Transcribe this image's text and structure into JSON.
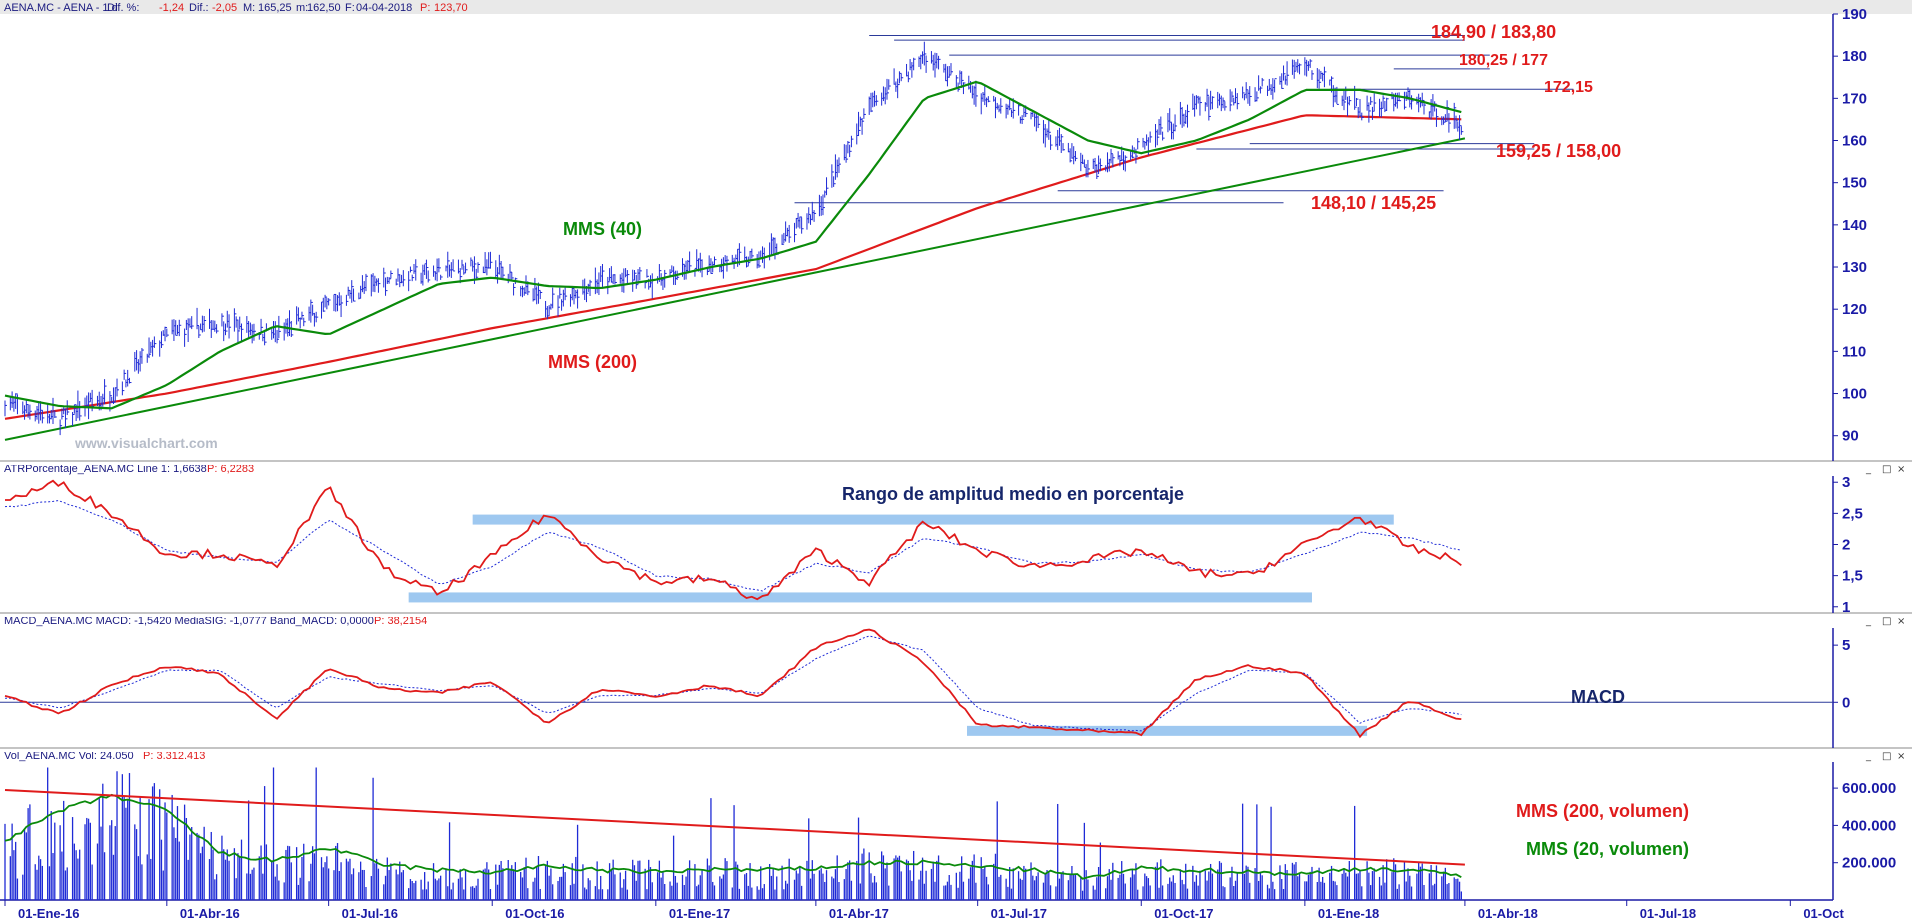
{
  "panels": {
    "price": {
      "header_symbol": "AENA.MC - AENA - 1 d",
      "header_fields": [
        {
          "k": "Dif. %:",
          "v": "-1,24"
        },
        {
          "k": "Dif.:",
          "v": "-2,05"
        },
        {
          "k": "M:",
          "v": "165,25"
        },
        {
          "k": "m:",
          "v": "162,50"
        },
        {
          "k": "F:",
          "v": "04-04-2018"
        },
        {
          "k": "P:",
          "v": "123,70"
        }
      ],
      "watermark": "www.visualchart.com"
    },
    "atr": {
      "header": "ATRPorcentaje_AENA.MC Line 1: 1,6638",
      "header_p": "P: 6,2283"
    },
    "macd": {
      "header": "MACD_AENA.MC MACD: -1,5420 MediaSIG: -1,0777 Band_MACD: 0,0000",
      "header_p": "P: 38,2154"
    },
    "vol": {
      "header": "Vol_AENA.MC Vol: 24.050",
      "header_p": "P: 3.312.413"
    }
  },
  "window_buttons": [
    "_",
    "□",
    "×"
  ],
  "colors": {
    "price_bars": "#1f2bd6",
    "ma_short": "#0a8a0a",
    "ma_long": "#e01b1b",
    "trendline": "#0a8a0a",
    "level_lines": "#2b3a9a",
    "level_text": "#e01b1b",
    "atr_line": "#e01b1b",
    "signal_line": "#1f2bd6",
    "highlight_band": "#9ec8f0",
    "axis_text": "#1a1aa6",
    "title_text": "#16266b"
  },
  "chart_data": [
    {
      "type": "line",
      "title": "",
      "x_ticks": [
        "01-Ene-16",
        "01-Abr-16",
        "01-Jul-16",
        "01-Oct-16",
        "01-Ene-17",
        "01-Abr-17",
        "01-Jul-17",
        "01-Oct-17",
        "01-Ene-18",
        "01-Abr-18",
        "01-Jul-18",
        "01-Oct"
      ],
      "y_ticks": [
        90,
        100,
        110,
        120,
        130,
        140,
        150,
        160,
        170,
        180,
        190
      ],
      "ylim": [
        84,
        190
      ],
      "series": [
        {
          "name": "price (OHLC bars)",
          "x": [
            "2016-01-01",
            "2016-02-01",
            "2016-03-01",
            "2016-04-01",
            "2016-05-01",
            "2016-06-01",
            "2016-07-01",
            "2016-08-01",
            "2016-09-01",
            "2016-10-01",
            "2016-11-01",
            "2016-12-01",
            "2017-01-01",
            "2017-02-01",
            "2017-03-01",
            "2017-04-01",
            "2017-05-01",
            "2017-06-01",
            "2017-07-01",
            "2017-08-01",
            "2017-09-01",
            "2017-10-01",
            "2017-11-01",
            "2017-12-01",
            "2018-01-01",
            "2018-02-01",
            "2018-03-01",
            "2018-04-01"
          ],
          "values": [
            98,
            94,
            100,
            114,
            117,
            114,
            121,
            127,
            129,
            130,
            121,
            127,
            127,
            131,
            132,
            143,
            168,
            180,
            171,
            165,
            153,
            158,
            168,
            171,
            178,
            167,
            170,
            163.5
          ]
        },
        {
          "name": "MMS (40)",
          "x": [
            "2016-01-01",
            "2016-02-01",
            "2016-03-01",
            "2016-04-01",
            "2016-05-01",
            "2016-06-01",
            "2016-07-01",
            "2016-08-01",
            "2016-09-01",
            "2016-10-01",
            "2016-11-01",
            "2016-12-01",
            "2017-01-01",
            "2017-02-01",
            "2017-03-01",
            "2017-04-01",
            "2017-05-01",
            "2017-06-01",
            "2017-07-01",
            "2017-08-01",
            "2017-09-01",
            "2017-10-01",
            "2017-11-01",
            "2017-12-01",
            "2018-01-01",
            "2018-02-01",
            "2018-03-01",
            "2018-04-01"
          ],
          "values": [
            99.5,
            97,
            96.5,
            102,
            110,
            116,
            114,
            120,
            126,
            127.5,
            125.5,
            125,
            127,
            130,
            132,
            136,
            152,
            170,
            174,
            167,
            160,
            157,
            160,
            165,
            172,
            172,
            170,
            166.5
          ]
        },
        {
          "name": "MMS (200)",
          "x": [
            "2016-01-01",
            "2016-04-01",
            "2016-07-01",
            "2016-10-01",
            "2017-01-01",
            "2017-04-01",
            "2017-07-01",
            "2017-10-01",
            "2018-01-01",
            "2018-04-01"
          ],
          "values": [
            94,
            100,
            107.5,
            115.5,
            122.5,
            129.5,
            144,
            156,
            166,
            165
          ]
        },
        {
          "name": "trendline",
          "x": [
            "2016-01-01",
            "2018-04-01"
          ],
          "values": [
            89,
            160.5
          ]
        }
      ],
      "horizontal_levels": [
        184.9,
        183.8,
        180.25,
        177,
        172.15,
        159.25,
        158.0,
        148.1,
        145.25
      ],
      "annotations": [
        "184,90 / 183,80",
        "180,25 / 177",
        "172,15",
        "159,25 / 158,00",
        "148,10 / 145,25",
        "MMS (40)",
        "MMS (200)"
      ]
    },
    {
      "type": "line",
      "title": "Rango de amplitud medio en porcentaje",
      "y_ticks": [
        "1",
        "1,5",
        "2",
        "2,5",
        "3"
      ],
      "ylim": [
        0.9,
        3.1
      ],
      "series": [
        {
          "name": "ATRPorcentaje_AENA.MC",
          "x": [
            "2016-01-01",
            "2016-02-01",
            "2016-03-01",
            "2016-04-01",
            "2016-05-01",
            "2016-06-01",
            "2016-07-01",
            "2016-08-01",
            "2016-09-01",
            "2016-10-01",
            "2016-11-01",
            "2016-12-01",
            "2017-01-01",
            "2017-02-01",
            "2017-03-01",
            "2017-04-01",
            "2017-05-01",
            "2017-06-01",
            "2017-07-01",
            "2017-08-01",
            "2017-09-01",
            "2017-10-01",
            "2017-11-01",
            "2017-12-01",
            "2018-01-01",
            "2018-02-01",
            "2018-03-01",
            "2018-04-01"
          ],
          "values": [
            2.7,
            3.0,
            2.5,
            1.85,
            1.85,
            1.65,
            2.9,
            1.6,
            1.2,
            1.8,
            2.5,
            1.8,
            1.4,
            1.45,
            1.1,
            1.9,
            1.4,
            2.35,
            1.9,
            1.65,
            1.75,
            1.9,
            1.55,
            1.5,
            2.0,
            2.45,
            1.95,
            1.7
          ]
        },
        {
          "name": "media",
          "x": [
            "2016-01-01",
            "2016-02-01",
            "2016-03-01",
            "2016-04-01",
            "2016-05-01",
            "2016-06-01",
            "2016-07-01",
            "2016-08-01",
            "2016-09-01",
            "2016-10-01",
            "2016-11-01",
            "2016-12-01",
            "2017-01-01",
            "2017-02-01",
            "2017-03-01",
            "2017-04-01",
            "2017-05-01",
            "2017-06-01",
            "2017-07-01",
            "2017-08-01",
            "2017-09-01",
            "2017-10-01",
            "2017-11-01",
            "2017-12-01",
            "2018-01-01",
            "2018-02-01",
            "2018-03-01",
            "2018-04-01"
          ],
          "values": [
            2.6,
            2.7,
            2.4,
            1.9,
            1.8,
            1.7,
            2.4,
            1.9,
            1.35,
            1.65,
            2.2,
            1.95,
            1.5,
            1.45,
            1.25,
            1.7,
            1.55,
            2.1,
            1.95,
            1.7,
            1.72,
            1.85,
            1.6,
            1.55,
            1.85,
            2.2,
            2.1,
            1.9
          ]
        }
      ],
      "highlight_bands": [
        {
          "from": "2016-09-20",
          "to": "2018-02-20",
          "y": 2.4
        },
        {
          "from": "2016-08-15",
          "to": "2018-01-05",
          "y": 1.15
        }
      ]
    },
    {
      "type": "line",
      "title": "MACD",
      "y_ticks": [
        "0",
        "5"
      ],
      "ylim": [
        -4,
        6.5
      ],
      "series": [
        {
          "name": "MACD",
          "x": [
            "2016-01-01",
            "2016-02-01",
            "2016-03-01",
            "2016-04-01",
            "2016-05-01",
            "2016-06-01",
            "2016-07-01",
            "2016-08-01",
            "2016-09-01",
            "2016-10-01",
            "2016-11-01",
            "2016-12-01",
            "2017-01-01",
            "2017-02-01",
            "2017-03-01",
            "2017-04-01",
            "2017-05-01",
            "2017-06-01",
            "2017-07-01",
            "2017-08-01",
            "2017-09-01",
            "2017-10-01",
            "2017-11-01",
            "2017-12-01",
            "2018-01-01",
            "2018-02-01",
            "2018-03-01",
            "2018-04-01"
          ],
          "values": [
            0.5,
            -1.0,
            1.5,
            3.2,
            2.5,
            -1.5,
            3.0,
            1.2,
            0.8,
            1.8,
            -1.8,
            1.2,
            0.5,
            1.5,
            0.5,
            4.8,
            6.4,
            3.5,
            -2.0,
            -2.2,
            -2.5,
            -2.8,
            2.0,
            3.2,
            2.5,
            -2.9,
            0.2,
            -1.7
          ]
        },
        {
          "name": "MediaSIG",
          "x": [
            "2016-01-01",
            "2016-02-01",
            "2016-03-01",
            "2016-04-01",
            "2016-05-01",
            "2016-06-01",
            "2016-07-01",
            "2016-08-01",
            "2016-09-01",
            "2016-10-01",
            "2016-11-01",
            "2016-12-01",
            "2017-01-01",
            "2017-02-01",
            "2017-03-01",
            "2017-04-01",
            "2017-05-01",
            "2017-06-01",
            "2017-07-01",
            "2017-08-01",
            "2017-09-01",
            "2017-10-01",
            "2017-11-01",
            "2017-12-01",
            "2018-01-01",
            "2018-02-01",
            "2018-03-01",
            "2018-04-01"
          ],
          "values": [
            0.4,
            -0.5,
            1.0,
            2.8,
            2.8,
            -0.5,
            2.2,
            1.6,
            1.0,
            1.5,
            -1.0,
            0.6,
            0.6,
            1.2,
            0.8,
            3.8,
            5.8,
            4.5,
            -0.5,
            -2.0,
            -2.3,
            -2.5,
            0.8,
            2.8,
            2.6,
            -1.8,
            -0.5,
            -1.1
          ]
        }
      ],
      "zero_line": 0,
      "highlight_bands": [
        {
          "from": "2017-06-25",
          "to": "2018-02-05",
          "y": -2.5
        }
      ]
    },
    {
      "type": "bar",
      "title": "",
      "y_ticks": [
        "200.000",
        "400.000",
        "600.000"
      ],
      "ylim": [
        0,
        740000
      ],
      "series": [
        {
          "name": "Vol_AENA.MC",
          "x": [
            "2016-01-01",
            "2016-02-01",
            "2016-03-01",
            "2016-04-01",
            "2016-05-01",
            "2016-06-01",
            "2016-07-01",
            "2016-08-01",
            "2016-09-01",
            "2016-10-01",
            "2016-11-01",
            "2016-12-01",
            "2017-01-01",
            "2017-02-01",
            "2017-03-01",
            "2017-04-01",
            "2017-05-01",
            "2017-06-01",
            "2017-07-01",
            "2017-08-01",
            "2017-09-01",
            "2017-10-01",
            "2017-11-01",
            "2017-12-01",
            "2018-01-01",
            "2018-02-01",
            "2018-03-01",
            "2018-04-01"
          ],
          "values": [
            300000,
            420000,
            500000,
            430000,
            250000,
            220000,
            230000,
            160000,
            140000,
            140000,
            170000,
            150000,
            150000,
            160000,
            150000,
            160000,
            200000,
            190000,
            180000,
            160000,
            120000,
            160000,
            150000,
            150000,
            140000,
            170000,
            150000,
            120000
          ]
        },
        {
          "name": "MMS (20, volumen)",
          "x": [
            "2016-01-01",
            "2016-02-01",
            "2016-03-01",
            "2016-04-01",
            "2016-05-01",
            "2016-06-01",
            "2016-07-01",
            "2016-08-01",
            "2016-09-01",
            "2016-10-01",
            "2016-11-01",
            "2016-12-01",
            "2017-01-01",
            "2017-02-01",
            "2017-03-01",
            "2017-04-01",
            "2017-05-01",
            "2017-06-01",
            "2017-07-01",
            "2017-08-01",
            "2017-09-01",
            "2017-10-01",
            "2017-11-01",
            "2017-12-01",
            "2018-01-01",
            "2018-02-01",
            "2018-03-01",
            "2018-04-01"
          ],
          "values": [
            320000,
            480000,
            560000,
            480000,
            250000,
            210000,
            280000,
            190000,
            160000,
            150000,
            180000,
            160000,
            150000,
            165000,
            160000,
            170000,
            200000,
            200000,
            180000,
            160000,
            120000,
            170000,
            160000,
            150000,
            140000,
            170000,
            160000,
            130000
          ]
        },
        {
          "name": "MMS (200, volumen)",
          "x": [
            "2016-01-01",
            "2018-04-01"
          ],
          "values": [
            590000,
            190000
          ]
        }
      ],
      "annotations": [
        "MMS (200, volumen)",
        "MMS (20, volumen)"
      ]
    }
  ]
}
